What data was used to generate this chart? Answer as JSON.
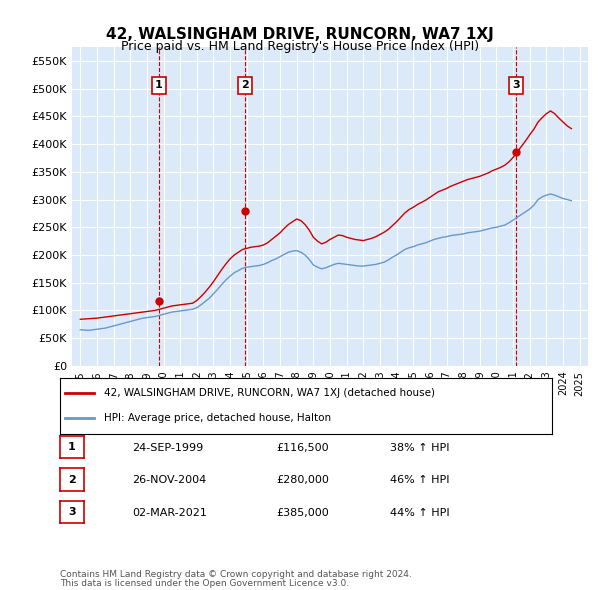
{
  "title": "42, WALSINGHAM DRIVE, RUNCORN, WA7 1XJ",
  "subtitle": "Price paid vs. HM Land Registry's House Price Index (HPI)",
  "legend_label_red": "42, WALSINGHAM DRIVE, RUNCORN, WA7 1XJ (detached house)",
  "legend_label_blue": "HPI: Average price, detached house, Halton",
  "transactions": [
    {
      "num": 1,
      "date": "24-SEP-1999",
      "price": 116500,
      "pct": "38%",
      "dir": "↑",
      "label": "HPI",
      "year": 1999.73
    },
    {
      "num": 2,
      "date": "26-NOV-2004",
      "price": 280000,
      "pct": "46%",
      "dir": "↑",
      "label": "HPI",
      "year": 2004.9
    },
    {
      "num": 3,
      "date": "02-MAR-2021",
      "price": 385000,
      "pct": "44%",
      "dir": "↑",
      "label": "HPI",
      "year": 2021.17
    }
  ],
  "footnote1": "Contains HM Land Registry data © Crown copyright and database right 2024.",
  "footnote2": "This data is licensed under the Open Government Licence v3.0.",
  "ylim": [
    0,
    575000
  ],
  "yticks": [
    0,
    50000,
    100000,
    150000,
    200000,
    250000,
    300000,
    350000,
    400000,
    450000,
    500000,
    550000
  ],
  "xlim_start": 1994.5,
  "xlim_end": 2025.5,
  "background_color": "#dce9f8",
  "plot_bg": "#dce9f8",
  "red_color": "#cc0000",
  "blue_color": "#6699cc",
  "vline_color": "#cc0000",
  "grid_color": "#ffffff",
  "hpi_data": {
    "years": [
      1995,
      1995.25,
      1995.5,
      1995.75,
      1996,
      1996.25,
      1996.5,
      1996.75,
      1997,
      1997.25,
      1997.5,
      1997.75,
      1998,
      1998.25,
      1998.5,
      1998.75,
      1999,
      1999.25,
      1999.5,
      1999.75,
      2000,
      2000.25,
      2000.5,
      2000.75,
      2001,
      2001.25,
      2001.5,
      2001.75,
      2002,
      2002.25,
      2002.5,
      2002.75,
      2003,
      2003.25,
      2003.5,
      2003.75,
      2004,
      2004.25,
      2004.5,
      2004.75,
      2005,
      2005.25,
      2005.5,
      2005.75,
      2006,
      2006.25,
      2006.5,
      2006.75,
      2007,
      2007.25,
      2007.5,
      2007.75,
      2008,
      2008.25,
      2008.5,
      2008.75,
      2009,
      2009.25,
      2009.5,
      2009.75,
      2010,
      2010.25,
      2010.5,
      2010.75,
      2011,
      2011.25,
      2011.5,
      2011.75,
      2012,
      2012.25,
      2012.5,
      2012.75,
      2013,
      2013.25,
      2013.5,
      2013.75,
      2014,
      2014.25,
      2014.5,
      2014.75,
      2015,
      2015.25,
      2015.5,
      2015.75,
      2016,
      2016.25,
      2016.5,
      2016.75,
      2017,
      2017.25,
      2017.5,
      2017.75,
      2018,
      2018.25,
      2018.5,
      2018.75,
      2019,
      2019.25,
      2019.5,
      2019.75,
      2020,
      2020.25,
      2020.5,
      2020.75,
      2021,
      2021.25,
      2021.5,
      2021.75,
      2022,
      2022.25,
      2022.5,
      2022.75,
      2023,
      2023.25,
      2023.5,
      2023.75,
      2024,
      2024.25,
      2024.5
    ],
    "hpi_values": [
      65000,
      64500,
      64000,
      65000,
      66000,
      67000,
      68000,
      70000,
      72000,
      74000,
      76000,
      78000,
      80000,
      82000,
      84000,
      86000,
      87000,
      88000,
      89000,
      91000,
      93000,
      95000,
      97000,
      98000,
      99000,
      100000,
      101000,
      102000,
      105000,
      110000,
      116000,
      122000,
      130000,
      138000,
      147000,
      155000,
      162000,
      168000,
      172000,
      176000,
      178000,
      179000,
      180000,
      181000,
      183000,
      186000,
      190000,
      193000,
      197000,
      201000,
      205000,
      207000,
      208000,
      205000,
      200000,
      192000,
      182000,
      178000,
      175000,
      177000,
      180000,
      183000,
      185000,
      184000,
      183000,
      182000,
      181000,
      180000,
      180000,
      181000,
      182000,
      183000,
      185000,
      187000,
      191000,
      196000,
      200000,
      205000,
      210000,
      213000,
      215000,
      218000,
      220000,
      222000,
      225000,
      228000,
      230000,
      232000,
      233000,
      235000,
      236000,
      237000,
      238000,
      240000,
      241000,
      242000,
      243000,
      245000,
      247000,
      249000,
      250000,
      252000,
      254000,
      258000,
      263000,
      268000,
      273000,
      278000,
      283000,
      290000,
      300000,
      305000,
      308000,
      310000,
      308000,
      305000,
      302000,
      300000,
      298000
    ],
    "red_values": [
      84000,
      84500,
      85000,
      85500,
      86000,
      87000,
      88000,
      89000,
      90000,
      91000,
      92000,
      93000,
      94000,
      95000,
      96000,
      97000,
      98000,
      99000,
      100000,
      102000,
      104000,
      106000,
      108000,
      109000,
      110000,
      111000,
      112000,
      113000,
      118000,
      125000,
      133000,
      142000,
      152000,
      163000,
      174000,
      184000,
      193000,
      200000,
      205000,
      210000,
      212000,
      214000,
      215000,
      216000,
      218000,
      222000,
      228000,
      234000,
      240000,
      248000,
      255000,
      260000,
      265000,
      262000,
      255000,
      245000,
      232000,
      225000,
      220000,
      223000,
      228000,
      232000,
      236000,
      235000,
      232000,
      230000,
      228000,
      227000,
      226000,
      228000,
      230000,
      233000,
      237000,
      241000,
      246000,
      253000,
      260000,
      268000,
      276000,
      282000,
      286000,
      291000,
      295000,
      299000,
      304000,
      309000,
      314000,
      317000,
      320000,
      324000,
      327000,
      330000,
      333000,
      336000,
      338000,
      340000,
      342000,
      345000,
      348000,
      352000,
      355000,
      358000,
      362000,
      368000,
      376000,
      386000,
      396000,
      406000,
      417000,
      427000,
      440000,
      448000,
      455000,
      460000,
      455000,
      447000,
      440000,
      433000,
      428000
    ]
  }
}
